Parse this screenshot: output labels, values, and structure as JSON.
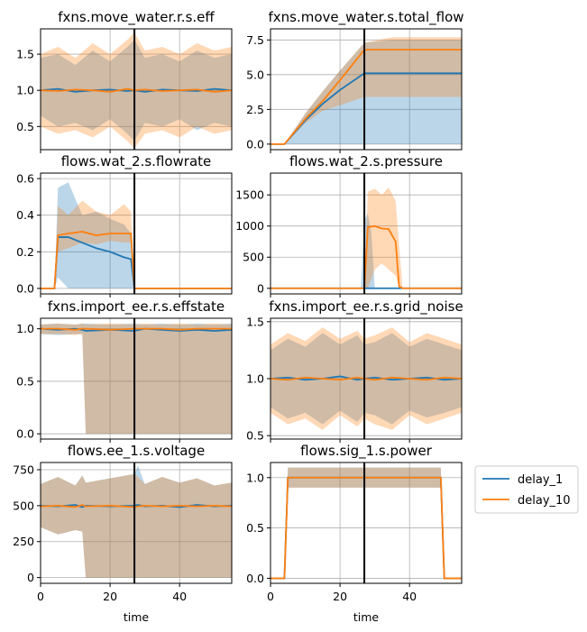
{
  "chart_data": [
    {
      "type": "line",
      "title": "fxns.move_water.r.s.eff",
      "xlabel": "",
      "xlim": [
        0,
        55
      ],
      "ylim": [
        0.18,
        1.85
      ],
      "yticks": [
        0.5,
        1.0,
        1.5
      ],
      "ytick_labels": [
        "0.5",
        "1.0",
        "1.5"
      ],
      "xticks": [
        0,
        20,
        40
      ],
      "xtick_labels": [
        "",
        "",
        ""
      ],
      "grid": true,
      "vline_x": 27,
      "series": [
        {
          "name": "delay_1",
          "x": [
            0,
            5,
            10,
            15,
            20,
            25,
            27,
            30,
            35,
            40,
            45,
            50,
            55
          ],
          "values": [
            1.0,
            1.02,
            0.98,
            1.0,
            1.01,
            0.99,
            1.0,
            0.98,
            1.01,
            1.0,
            0.99,
            1.02,
            1.0
          ],
          "band_low": [
            0.65,
            0.5,
            0.55,
            0.45,
            0.6,
            0.4,
            0.3,
            0.55,
            0.5,
            0.6,
            0.45,
            0.55,
            0.5
          ],
          "band_high": [
            1.45,
            1.5,
            1.35,
            1.55,
            1.4,
            1.6,
            1.7,
            1.45,
            1.5,
            1.4,
            1.55,
            1.45,
            1.5
          ]
        },
        {
          "name": "delay_10",
          "x": [
            0,
            5,
            10,
            15,
            20,
            25,
            27,
            30,
            35,
            40,
            45,
            50,
            55
          ],
          "values": [
            1.0,
            0.99,
            1.01,
            1.0,
            0.98,
            1.02,
            1.0,
            1.01,
            0.99,
            1.0,
            1.01,
            0.98,
            1.0
          ],
          "band_low": [
            0.5,
            0.4,
            0.45,
            0.35,
            0.5,
            0.3,
            0.2,
            0.4,
            0.45,
            0.35,
            0.5,
            0.4,
            0.45
          ],
          "band_high": [
            1.5,
            1.6,
            1.45,
            1.65,
            1.5,
            1.7,
            1.8,
            1.55,
            1.6,
            1.5,
            1.65,
            1.55,
            1.6
          ]
        }
      ]
    },
    {
      "type": "line",
      "title": "fxns.move_water.s.total_flow",
      "xlabel": "",
      "xlim": [
        0,
        55
      ],
      "ylim": [
        -0.4,
        8.3
      ],
      "yticks": [
        0.0,
        2.5,
        5.0,
        7.5
      ],
      "ytick_labels": [
        "0.0",
        "2.5",
        "5.0",
        "7.5"
      ],
      "xticks": [
        0,
        20,
        40
      ],
      "xtick_labels": [
        "",
        "",
        ""
      ],
      "grid": true,
      "vline_x": 27,
      "series": [
        {
          "name": "delay_1",
          "x": [
            0,
            4,
            10,
            15,
            20,
            27,
            35,
            45,
            55
          ],
          "values": [
            0,
            0,
            1.7,
            2.9,
            3.9,
            5.1,
            5.1,
            5.1,
            5.1
          ],
          "band_low": [
            0,
            0,
            0,
            0,
            0,
            0,
            0,
            0,
            0
          ],
          "band_high": [
            0,
            0,
            2.2,
            3.8,
            5.3,
            7.3,
            7.5,
            7.5,
            7.5
          ]
        },
        {
          "name": "delay_10",
          "x": [
            0,
            4,
            10,
            15,
            20,
            27,
            35,
            45,
            55
          ],
          "values": [
            0,
            0,
            1.8,
            3.1,
            4.6,
            6.8,
            6.8,
            6.8,
            6.8
          ],
          "band_low": [
            0,
            0,
            1.5,
            2.4,
            2.8,
            3.4,
            3.4,
            3.4,
            3.4
          ],
          "band_high": [
            0,
            0,
            2.2,
            3.8,
            5.3,
            7.3,
            7.7,
            7.7,
            7.7
          ]
        }
      ]
    },
    {
      "type": "line",
      "title": "flows.wat_2.s.flowrate",
      "xlabel": "",
      "xlim": [
        0,
        55
      ],
      "ylim": [
        -0.03,
        0.63
      ],
      "yticks": [
        0.0,
        0.2,
        0.4,
        0.6
      ],
      "ytick_labels": [
        "0.0",
        "0.2",
        "0.4",
        "0.6"
      ],
      "xticks": [
        0,
        20,
        40
      ],
      "xtick_labels": [
        "",
        "",
        ""
      ],
      "grid": true,
      "vline_x": 27,
      "series": [
        {
          "name": "delay_1",
          "x": [
            0,
            4,
            5,
            8,
            12,
            16,
            20,
            24,
            26,
            27,
            28,
            55
          ],
          "values": [
            0,
            0,
            0.28,
            0.28,
            0.25,
            0.22,
            0.2,
            0.17,
            0.16,
            0.0,
            0.0,
            0.0
          ],
          "band_low": [
            0,
            0,
            0.06,
            0.0,
            0.0,
            0.0,
            0.0,
            0.0,
            0.0,
            0.0,
            0.0,
            0.0
          ],
          "band_high": [
            0,
            0,
            0.55,
            0.58,
            0.4,
            0.42,
            0.38,
            0.35,
            0.3,
            0.0,
            0.0,
            0.0
          ]
        },
        {
          "name": "delay_10",
          "x": [
            0,
            4,
            5,
            8,
            12,
            16,
            20,
            24,
            26,
            27,
            28,
            55
          ],
          "values": [
            0,
            0,
            0.29,
            0.3,
            0.31,
            0.29,
            0.3,
            0.3,
            0.3,
            0.0,
            0.0,
            0.0
          ],
          "band_low": [
            0,
            0,
            0.2,
            0.22,
            0.25,
            0.24,
            0.26,
            0.25,
            0.25,
            0.0,
            0.0,
            0.0
          ],
          "band_high": [
            0,
            0,
            0.45,
            0.4,
            0.48,
            0.42,
            0.4,
            0.46,
            0.42,
            0.0,
            0.0,
            0.0
          ]
        }
      ]
    },
    {
      "type": "line",
      "title": "flows.wat_2.s.pressure",
      "xlabel": "",
      "xlim": [
        0,
        55
      ],
      "ylim": [
        -90,
        1850
      ],
      "yticks": [
        0,
        500,
        1000,
        1500
      ],
      "ytick_labels": [
        "0",
        "500",
        "1000",
        "1500"
      ],
      "xticks": [
        0,
        20,
        40
      ],
      "xtick_labels": [
        "",
        "",
        ""
      ],
      "grid": true,
      "vline_x": 27,
      "series": [
        {
          "name": "delay_1",
          "x": [
            0,
            26,
            27,
            28,
            29,
            30,
            55
          ],
          "values": [
            0,
            0,
            0,
            0,
            0,
            0,
            0
          ],
          "band_low": [
            0,
            0,
            0,
            0,
            0,
            0,
            0
          ],
          "band_high": [
            0,
            0,
            1100,
            1200,
            900,
            0,
            0
          ]
        },
        {
          "name": "delay_10",
          "x": [
            0,
            26,
            27,
            28,
            30,
            32,
            34,
            36,
            37,
            38,
            55
          ],
          "values": [
            0,
            0,
            0,
            980,
            1000,
            960,
            950,
            750,
            30,
            0,
            0
          ],
          "band_low": [
            0,
            0,
            0,
            0,
            300,
            400,
            300,
            200,
            0,
            0,
            0
          ],
          "band_high": [
            0,
            0,
            0,
            1550,
            1600,
            1500,
            1620,
            1400,
            700,
            0,
            0
          ]
        }
      ]
    },
    {
      "type": "line",
      "title": "fxns.import_ee.r.s.effstate",
      "xlabel": "",
      "xlim": [
        0,
        55
      ],
      "ylim": [
        -0.05,
        1.1
      ],
      "yticks": [
        0.0,
        0.5,
        1.0
      ],
      "ytick_labels": [
        "0.0",
        "0.5",
        "1.0"
      ],
      "xticks": [
        0,
        20,
        40
      ],
      "xtick_labels": [
        "",
        "",
        ""
      ],
      "grid": true,
      "vline_x": 27,
      "series": [
        {
          "name": "delay_1",
          "x": [
            0,
            5,
            10,
            12,
            13,
            20,
            27,
            30,
            35,
            40,
            45,
            50,
            55
          ],
          "values": [
            1.0,
            0.99,
            1.0,
            0.99,
            0.98,
            0.99,
            0.98,
            1.0,
            0.99,
            0.98,
            0.99,
            0.98,
            0.99
          ],
          "band_low": [
            0.95,
            0.94,
            0.95,
            0.95,
            0.0,
            0.0,
            0.0,
            0.0,
            0.0,
            0.0,
            0.0,
            0.0,
            0.0
          ],
          "band_high": [
            1.04,
            1.05,
            1.04,
            1.05,
            1.05,
            1.04,
            1.05,
            1.04,
            1.05,
            1.04,
            1.05,
            1.04,
            1.05
          ]
        },
        {
          "name": "delay_10",
          "x": [
            0,
            5,
            10,
            12,
            13,
            20,
            27,
            30,
            35,
            40,
            45,
            50,
            55
          ],
          "values": [
            1.0,
            1.0,
            0.99,
            1.0,
            1.0,
            0.99,
            1.0,
            1.0,
            1.0,
            0.99,
            1.0,
            1.0,
            1.0
          ],
          "band_low": [
            0.95,
            0.95,
            0.94,
            0.95,
            0.0,
            0.0,
            0.0,
            0.0,
            0.0,
            0.0,
            0.0,
            0.0,
            0.0
          ],
          "band_high": [
            1.04,
            1.05,
            1.04,
            1.05,
            1.04,
            1.05,
            1.04,
            1.05,
            1.04,
            1.05,
            1.04,
            1.05,
            1.04
          ]
        }
      ]
    },
    {
      "type": "line",
      "title": "fxns.import_ee.r.s.grid_noise",
      "xlabel": "",
      "xlim": [
        0,
        55
      ],
      "ylim": [
        0.47,
        1.53
      ],
      "yticks": [
        0.5,
        1.0,
        1.5
      ],
      "ytick_labels": [
        "0.5",
        "1.0",
        "1.5"
      ],
      "xticks": [
        0,
        20,
        40
      ],
      "xtick_labels": [
        "",
        "",
        ""
      ],
      "grid": true,
      "vline_x": 27,
      "series": [
        {
          "name": "delay_1",
          "x": [
            0,
            5,
            10,
            15,
            20,
            25,
            27,
            30,
            35,
            40,
            45,
            50,
            55
          ],
          "values": [
            1.0,
            1.01,
            0.99,
            1.0,
            1.02,
            0.99,
            1.0,
            1.01,
            0.99,
            1.0,
            1.01,
            0.99,
            1.0
          ],
          "band_low": [
            0.75,
            0.65,
            0.7,
            0.6,
            0.72,
            0.62,
            0.7,
            0.68,
            0.6,
            0.72,
            0.66,
            0.7,
            0.75
          ],
          "band_high": [
            1.25,
            1.35,
            1.28,
            1.4,
            1.3,
            1.38,
            1.3,
            1.32,
            1.4,
            1.28,
            1.35,
            1.3,
            1.25
          ]
        },
        {
          "name": "delay_10",
          "x": [
            0,
            5,
            10,
            15,
            20,
            25,
            27,
            30,
            35,
            40,
            45,
            50,
            55
          ],
          "values": [
            1.0,
            0.99,
            1.01,
            1.0,
            0.99,
            1.01,
            1.0,
            0.99,
            1.01,
            1.0,
            0.99,
            1.01,
            1.0
          ],
          "band_low": [
            0.7,
            0.6,
            0.65,
            0.55,
            0.68,
            0.58,
            0.65,
            0.6,
            0.55,
            0.68,
            0.6,
            0.65,
            0.7
          ],
          "band_high": [
            1.3,
            1.4,
            1.33,
            1.45,
            1.35,
            1.42,
            1.35,
            1.38,
            1.45,
            1.32,
            1.4,
            1.35,
            1.3
          ]
        }
      ]
    },
    {
      "type": "line",
      "title": "flows.ee_1.s.voltage",
      "xlabel": "time",
      "xlim": [
        0,
        55
      ],
      "ylim": [
        -40,
        800
      ],
      "yticks": [
        0,
        250,
        500,
        750
      ],
      "ytick_labels": [
        "0",
        "250",
        "500",
        "750"
      ],
      "xticks": [
        0,
        20,
        40
      ],
      "xtick_labels": [
        "0",
        "20",
        "40"
      ],
      "grid": true,
      "vline_x": 27,
      "series": [
        {
          "name": "delay_1",
          "x": [
            0,
            5,
            10,
            12,
            13,
            20,
            27,
            28,
            30,
            35,
            40,
            45,
            50,
            55
          ],
          "values": [
            500,
            495,
            505,
            490,
            500,
            495,
            500,
            505,
            495,
            500,
            490,
            505,
            495,
            500
          ],
          "band_low": [
            350,
            300,
            330,
            320,
            0,
            0,
            0,
            0,
            0,
            0,
            0,
            0,
            0,
            0
          ],
          "band_high": [
            650,
            700,
            640,
            710,
            660,
            690,
            720,
            780,
            650,
            700,
            660,
            690,
            640,
            660
          ]
        },
        {
          "name": "delay_10",
          "x": [
            0,
            5,
            10,
            12,
            13,
            20,
            27,
            28,
            30,
            35,
            40,
            45,
            50,
            55
          ],
          "values": [
            495,
            500,
            490,
            505,
            495,
            500,
            490,
            495,
            500,
            495,
            500,
            495,
            500,
            495
          ],
          "band_low": [
            350,
            300,
            330,
            320,
            0,
            0,
            0,
            0,
            0,
            0,
            0,
            0,
            0,
            0
          ],
          "band_high": [
            650,
            700,
            640,
            710,
            660,
            690,
            720,
            700,
            650,
            700,
            660,
            690,
            640,
            660
          ]
        }
      ]
    },
    {
      "type": "line",
      "title": "flows.sig_1.s.power",
      "xlabel": "time",
      "xlim": [
        0,
        55
      ],
      "ylim": [
        -0.05,
        1.15
      ],
      "yticks": [
        0.0,
        0.5,
        1.0
      ],
      "ytick_labels": [
        "0.0",
        "0.5",
        "1.0"
      ],
      "xticks": [
        0,
        20,
        40
      ],
      "xtick_labels": [
        "0",
        "20",
        "40"
      ],
      "grid": true,
      "vline_x": 27,
      "series": [
        {
          "name": "delay_1",
          "x": [
            0,
            4,
            5,
            49,
            50,
            55
          ],
          "values": [
            0,
            0,
            1.0,
            1.0,
            0,
            0
          ],
          "band_low": [
            0,
            0,
            0.9,
            0.9,
            0,
            0
          ],
          "band_high": [
            0,
            0,
            1.1,
            1.1,
            0,
            0
          ]
        },
        {
          "name": "delay_10",
          "x": [
            0,
            4,
            5,
            49,
            50,
            55
          ],
          "values": [
            0,
            0,
            1.0,
            1.0,
            0,
            0
          ],
          "band_low": [
            0,
            0,
            0.9,
            0.9,
            0,
            0
          ],
          "band_high": [
            0,
            0,
            1.1,
            1.1,
            0,
            0
          ]
        }
      ]
    }
  ],
  "legend": {
    "placement": "right",
    "entries": [
      {
        "label": "delay_1",
        "color": "#1f77b4"
      },
      {
        "label": "delay_10",
        "color": "#ff7f0e"
      }
    ]
  },
  "colors": {
    "delay_1": "#1f77b4",
    "delay_10": "#ff7f0e",
    "band_delay_1": "#1f77b4",
    "band_delay_10": "#ff7f0e",
    "vline": "#000000",
    "grid": "#b0b0b0",
    "axes": "#000000"
  }
}
